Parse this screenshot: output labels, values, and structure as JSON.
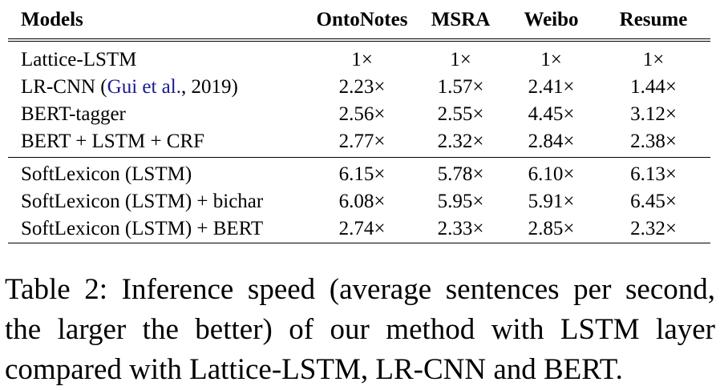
{
  "table": {
    "headers": [
      "Models",
      "OntoNotes",
      "MSRA",
      "Weibo",
      "Resume"
    ],
    "groups": [
      [
        {
          "model": "Lattice-LSTM",
          "values": [
            "1×",
            "1×",
            "1×",
            "1×"
          ]
        },
        {
          "model_prefix": "LR-CNN (",
          "model_cite": "Gui et al.",
          "model_suffix": ", 2019)",
          "values": [
            "2.23×",
            "1.57×",
            "2.41×",
            "1.44×"
          ]
        },
        {
          "model": "BERT-tagger",
          "values": [
            "2.56×",
            "2.55×",
            "4.45×",
            "3.12×"
          ]
        },
        {
          "model": "BERT + LSTM + CRF",
          "values": [
            "2.77×",
            "2.32×",
            "2.84×",
            "2.38×"
          ]
        }
      ],
      [
        {
          "model": "SoftLexicon (LSTM)",
          "values": [
            "6.15×",
            "5.78×",
            "6.10×",
            "6.13×"
          ]
        },
        {
          "model": "SoftLexicon (LSTM) + bichar",
          "values": [
            "6.08×",
            "5.95×",
            "5.91×",
            "6.45×"
          ]
        },
        {
          "model": "SoftLexicon (LSTM) + BERT",
          "values": [
            "2.74×",
            "2.33×",
            "2.85×",
            "2.32×"
          ]
        }
      ]
    ]
  },
  "caption": {
    "lines": [
      "Table 2: Inference speed (average sentences per second,",
      "the larger the better) of our method with LSTM layer",
      "compared with Lattice-LSTM, LR-CNN and BERT."
    ]
  }
}
